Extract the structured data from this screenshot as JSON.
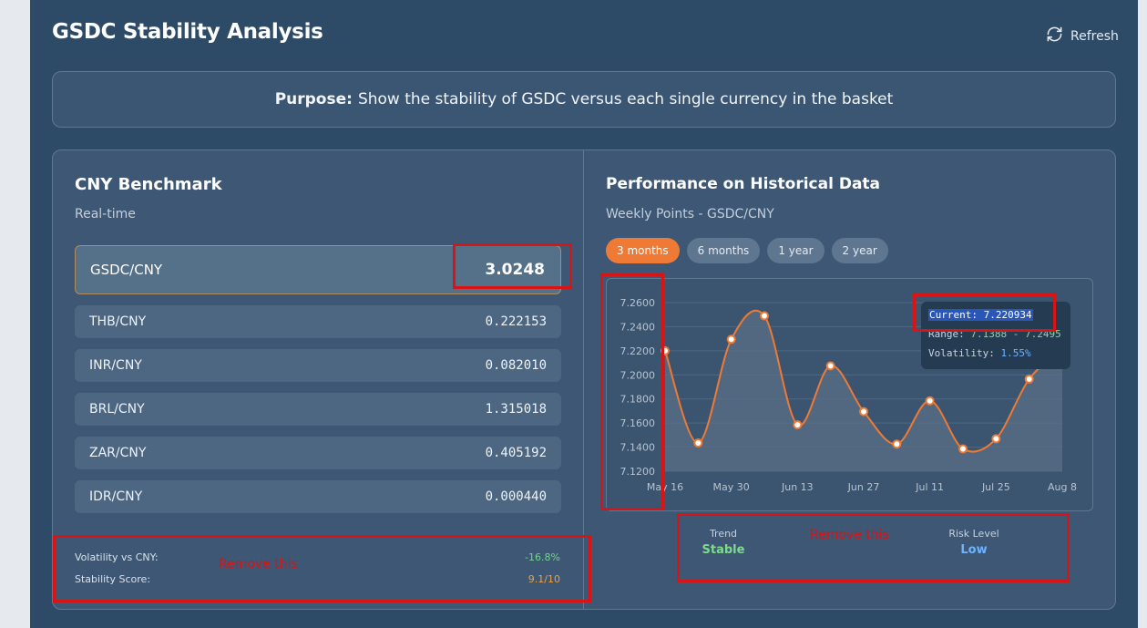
{
  "header": {
    "title": "GSDC Stability Analysis",
    "refresh_label": "Refresh"
  },
  "purpose": {
    "label": "Purpose:",
    "text": "Show the stability of GSDC versus each single currency in the basket"
  },
  "benchmark": {
    "title": "CNY Benchmark",
    "subtitle": "Real-time",
    "main_pair": {
      "label": "GSDC/CNY",
      "value": "3.0248"
    },
    "pairs": [
      {
        "label": "THB/CNY",
        "value": "0.222153"
      },
      {
        "label": "INR/CNY",
        "value": "0.082010"
      },
      {
        "label": "BRL/CNY",
        "value": "1.315018"
      },
      {
        "label": "ZAR/CNY",
        "value": "0.405192"
      },
      {
        "label": "IDR/CNY",
        "value": "0.000440"
      }
    ],
    "stats": {
      "volatility_label": "Volatility vs CNY:",
      "volatility_value": "-16.8%",
      "stability_label": "Stability Score:",
      "stability_value": "9.1/10"
    }
  },
  "performance": {
    "title": "Performance on Historical Data",
    "subtitle": "Weekly Points - GSDC/CNY",
    "tabs": [
      {
        "label": "3 months",
        "active": true
      },
      {
        "label": "6 months",
        "active": false
      },
      {
        "label": "1 year",
        "active": false
      },
      {
        "label": "2 year",
        "active": false
      }
    ],
    "tooltip": {
      "current_label": "Current:",
      "current_value": "7.220934",
      "range_label": "Range:",
      "range_value": "7.1388 - 7.2495",
      "volatility_label": "Volatility:",
      "volatility_value": "1.55%"
    },
    "trend": {
      "label": "Trend",
      "value": "Stable"
    },
    "risk": {
      "label": "Risk Level",
      "value": "Low"
    }
  },
  "chart_data": {
    "type": "line",
    "x": [
      "May 16",
      "May 23",
      "May 30",
      "Jun 6",
      "Jun 13",
      "Jun 20",
      "Jun 27",
      "Jul 4",
      "Jul 11",
      "Jul 18",
      "Jul 25",
      "Aug 1",
      "Aug 8"
    ],
    "x_tick_labels": [
      "May 16",
      "May 30",
      "Jun 13",
      "Jun 27",
      "Jul 11",
      "Jul 25",
      "Aug 8"
    ],
    "series": [
      {
        "values": [
          7.22,
          7.1435,
          7.2295,
          7.249,
          7.1585,
          7.2075,
          7.1695,
          7.1425,
          7.1785,
          7.1385,
          7.147,
          7.1965,
          7.2209
        ]
      }
    ],
    "y_ticks": [
      "7.1200",
      "7.1400",
      "7.1600",
      "7.1800",
      "7.2000",
      "7.2200",
      "7.2400",
      "7.2600"
    ],
    "ylim": [
      7.12,
      7.26
    ],
    "grid": true,
    "colors": {
      "line": "#ee7a36",
      "point_fill": "#ffffff"
    }
  },
  "annotations": {
    "remove_left": "Remove this",
    "remove_right": "Remove this"
  },
  "colors": {
    "accent": "#ee7a36",
    "positive": "#6fd68a",
    "score": "#f2a03a",
    "trend": "#7ddc8a",
    "risk": "#6fb3ff",
    "annotation": "#d81414"
  }
}
